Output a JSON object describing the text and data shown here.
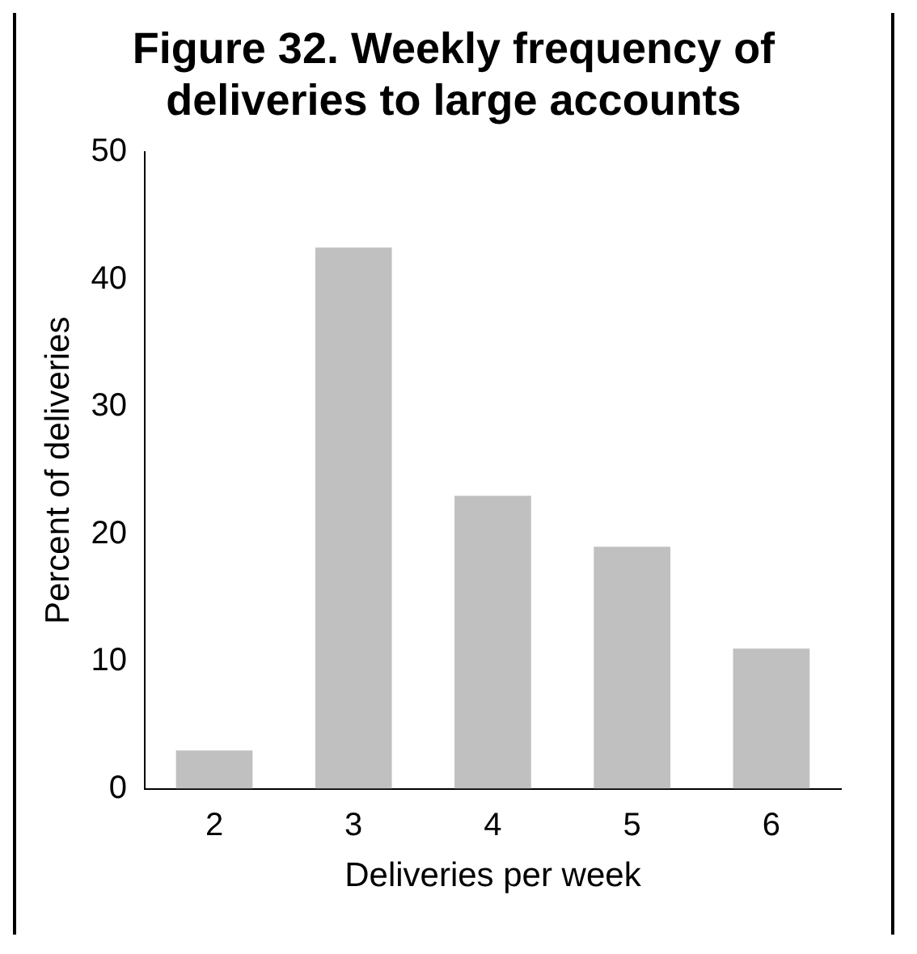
{
  "chart_data": {
    "type": "bar",
    "title": "Figure 32.  Weekly frequency of deliveries to large accounts",
    "xlabel": "Deliveries per week",
    "ylabel": "Percent of deliveries",
    "categories": [
      "2",
      "3",
      "4",
      "5",
      "6"
    ],
    "values": [
      3,
      42.5,
      23,
      19,
      11
    ],
    "color": "#c0c0c0",
    "ylim": [
      0,
      50
    ],
    "yticks": [
      0,
      10,
      20,
      30,
      40,
      50
    ],
    "grid": false,
    "legend": false
  }
}
